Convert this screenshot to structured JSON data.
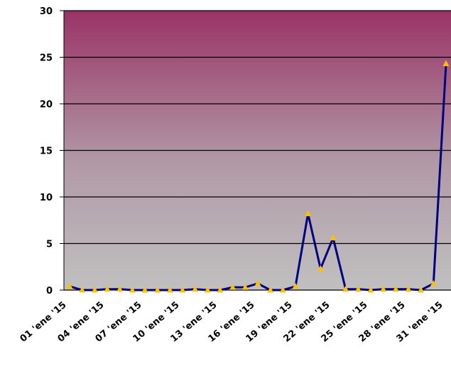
{
  "chart_data": {
    "type": "line",
    "categories": [
      "01 'ene '15",
      null,
      null,
      "04 'ene '15",
      null,
      null,
      "07 'ene '15",
      null,
      null,
      "10 'ene '15",
      null,
      null,
      "13 'ene '15",
      null,
      null,
      "16 'ene '15",
      null,
      null,
      "19 'ene '15",
      null,
      null,
      "22 'ene '15",
      null,
      null,
      "25 'ene '15",
      null,
      null,
      "28 'ene '15",
      null,
      null,
      "31 'ene '15"
    ],
    "series": [
      {
        "color": "#000080",
        "marker_color": "#ffc000",
        "values": [
          0.4,
          0,
          0,
          0.1,
          0.1,
          0,
          0,
          0,
          0,
          0,
          0.1,
          0,
          0,
          0.3,
          0.3,
          0.7,
          0,
          0,
          0.4,
          8.2,
          2.3,
          5.6,
          0.1,
          0.1,
          0,
          0.1,
          0.1,
          0.1,
          0,
          0.7,
          24.3
        ]
      }
    ],
    "ylim": [
      0,
      30
    ],
    "yticks": [
      0,
      5,
      10,
      15,
      20,
      25,
      30
    ],
    "grid": true
  }
}
